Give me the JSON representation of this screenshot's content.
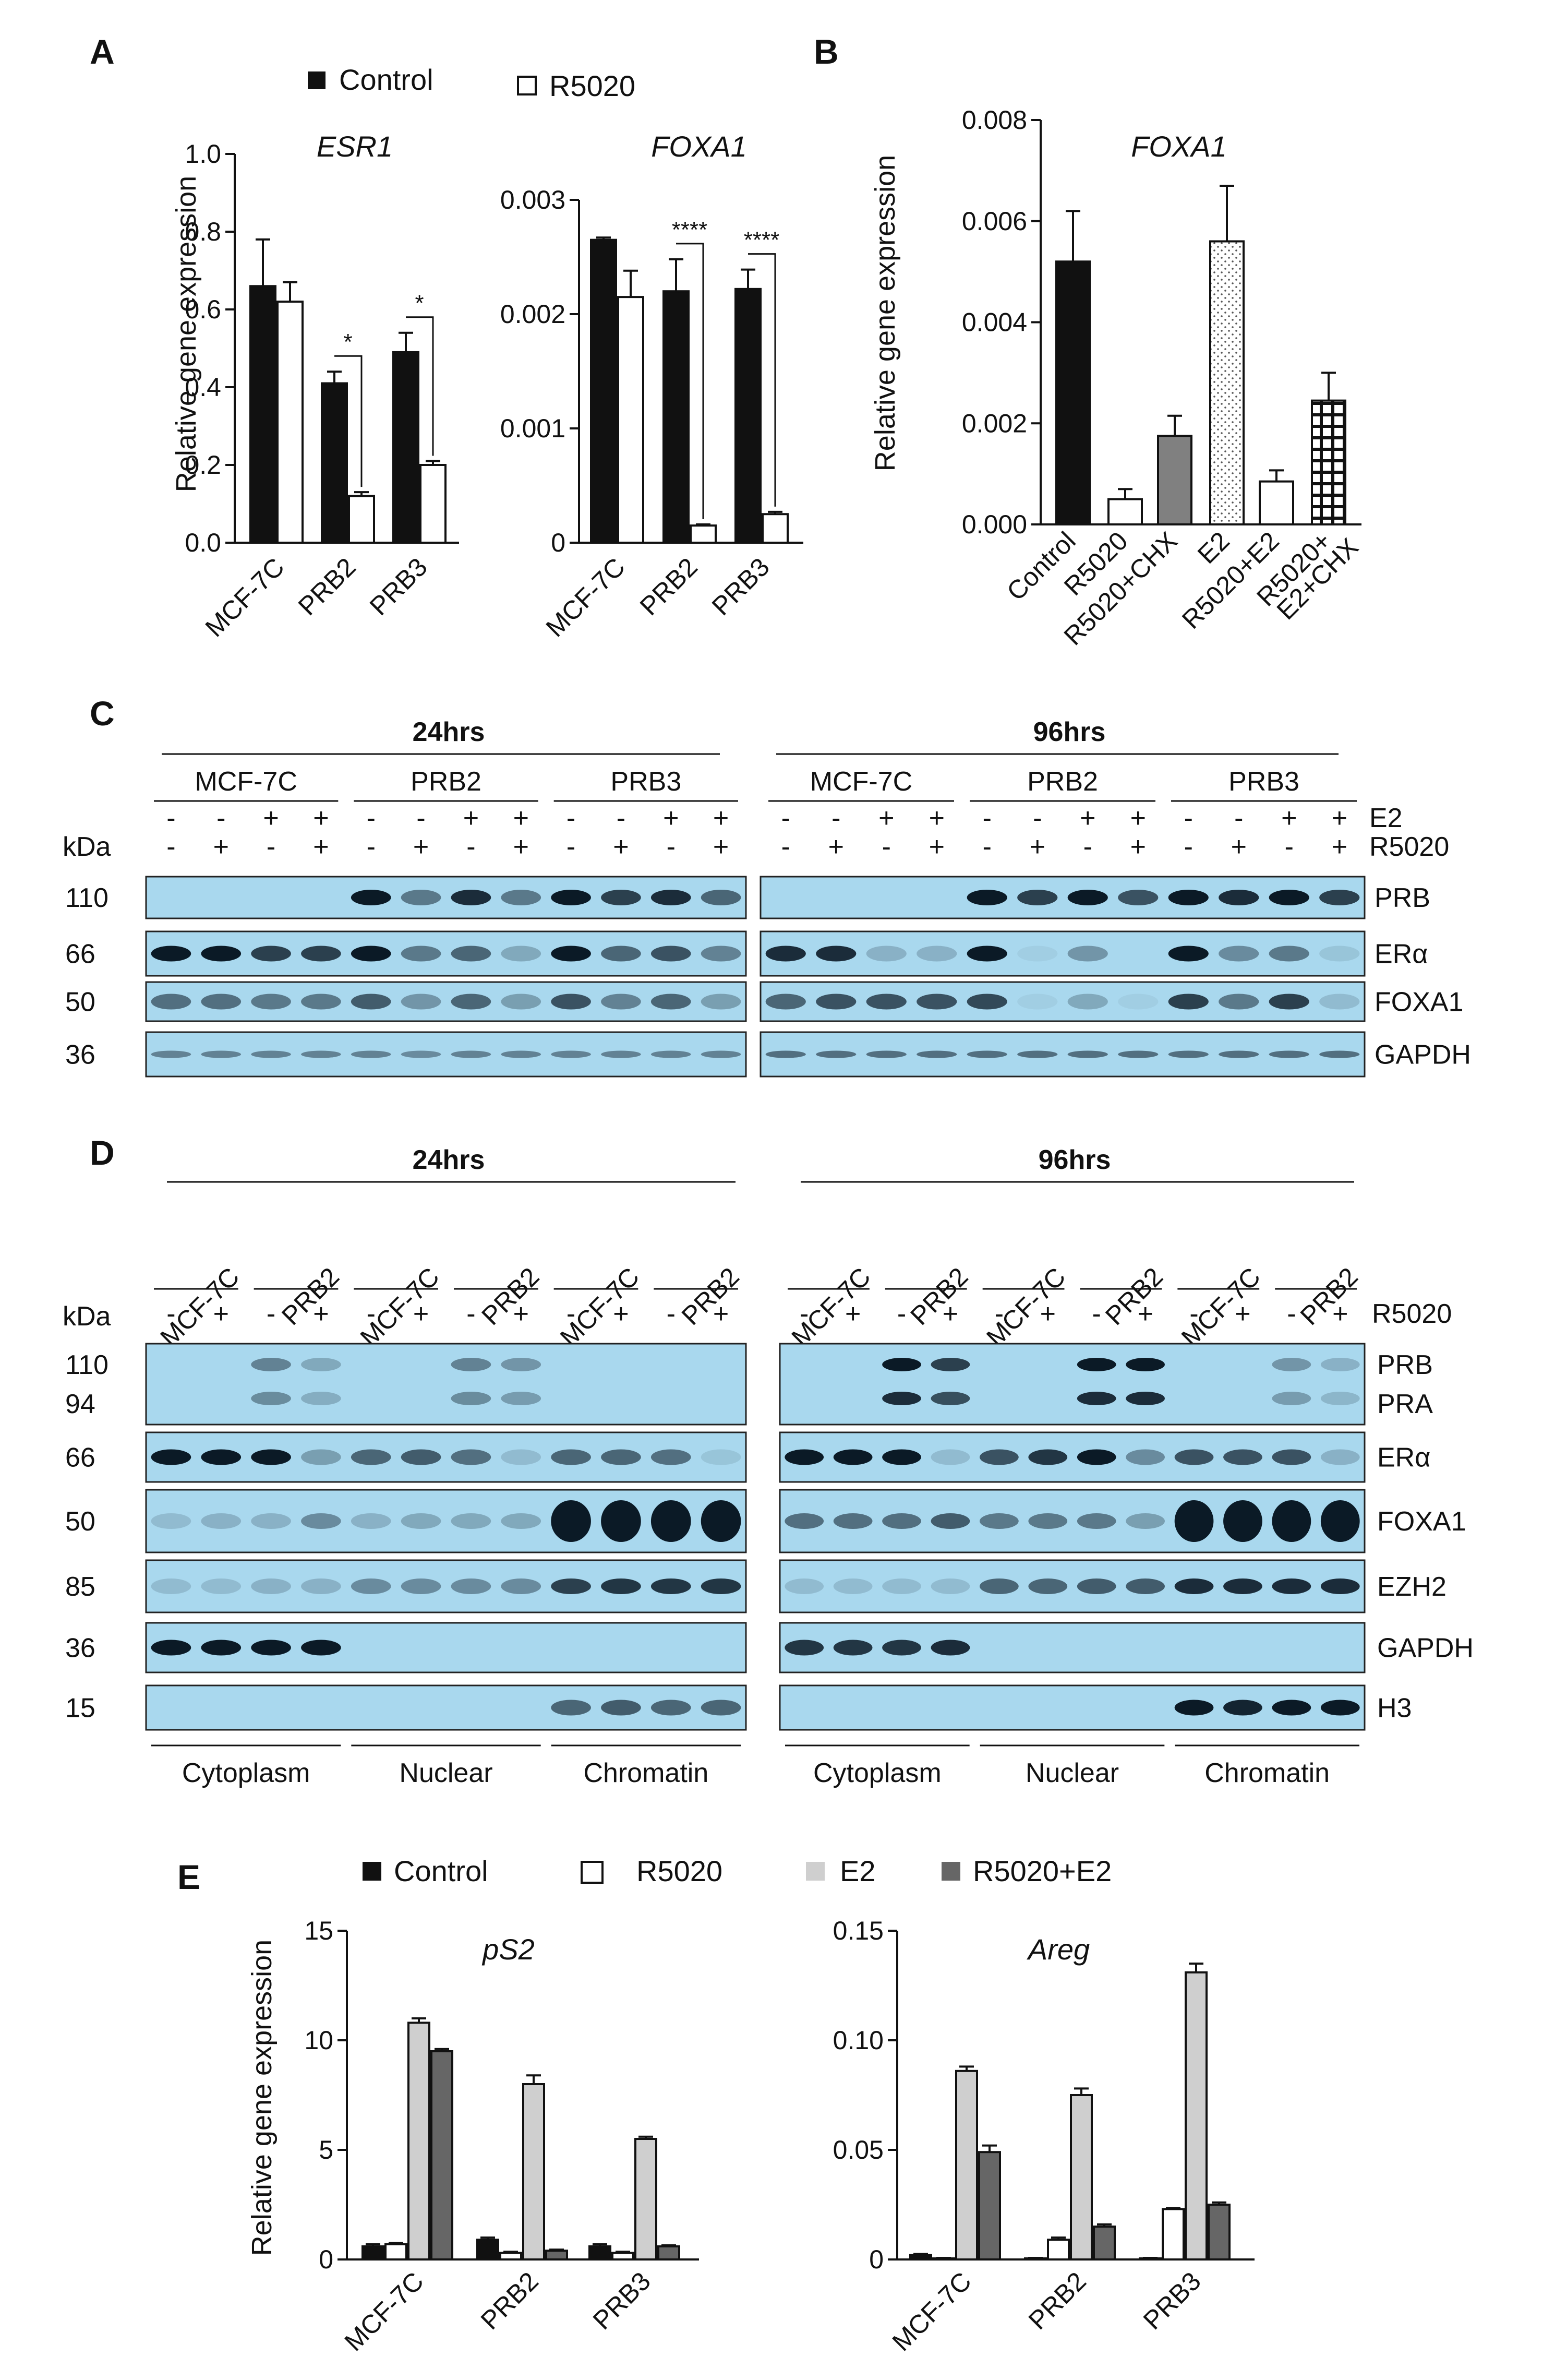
{
  "figure": {
    "panel_labels": [
      "A",
      "B",
      "C",
      "D",
      "E"
    ]
  },
  "colors": {
    "control": "#111111",
    "r5020": "#ffffff",
    "e2": "#cfcfcf",
    "r5020_e2": "#666666",
    "r5020_chx": "#808080",
    "blot_bg": "#a9d8ee"
  },
  "panel_a": {
    "legend": [
      "Control",
      "R5020"
    ],
    "ylabel": "Relative gene expression",
    "charts": [
      {
        "title": "ESR1",
        "categories": [
          "MCF-7C",
          "PRB2",
          "PRB3"
        ],
        "ticks": [
          "0.0",
          "0.2",
          "0.4",
          "0.6",
          "0.8",
          "1.0"
        ],
        "ymax": 1.0,
        "control": [
          0.66,
          0.41,
          0.49
        ],
        "control_err": [
          0.12,
          0.03,
          0.05
        ],
        "r5020": [
          0.62,
          0.12,
          0.2
        ],
        "r5020_err": [
          0.05,
          0.01,
          0.01
        ],
        "significance": [
          "",
          "*",
          "*"
        ]
      },
      {
        "title": "FOXA1",
        "categories": [
          "MCF-7C",
          "PRB2",
          "PRB3"
        ],
        "ticks": [
          "0",
          "0.001",
          "0.002",
          "0.003"
        ],
        "ymax": 0.003,
        "control": [
          0.00265,
          0.0022,
          0.00222
        ],
        "control_err": [
          2e-05,
          0.00028,
          0.00017
        ],
        "r5020": [
          0.00215,
          0.00015,
          0.00025
        ],
        "r5020_err": [
          0.00023,
          1e-05,
          2e-05
        ],
        "significance": [
          "",
          "****",
          "****"
        ]
      }
    ]
  },
  "panel_b": {
    "title": "FOXA1",
    "ylabel": "Relative gene expression",
    "ticks": [
      "0.000",
      "0.002",
      "0.004",
      "0.006",
      "0.008"
    ],
    "ymax": 0.008,
    "categories": [
      "Control",
      "R5020",
      "R5020+CHX",
      "E2",
      "R5020+E2",
      "R5020+\nE2+CHX"
    ],
    "category_lines": [
      [
        "Control"
      ],
      [
        "R5020"
      ],
      [
        "R5020+CHX"
      ],
      [
        "E2"
      ],
      [
        "R5020+E2"
      ],
      [
        "R5020+",
        "E2+CHX"
      ]
    ],
    "values": [
      0.0052,
      0.0005,
      0.00175,
      0.0056,
      0.00085,
      0.00245
    ],
    "errors": [
      0.001,
      0.0002,
      0.0004,
      0.0011,
      0.00022,
      0.00055
    ]
  },
  "panel_c": {
    "left_time": "24hrs",
    "right_time": "96hrs",
    "groups": [
      "MCF-7C",
      "PRB2",
      "PRB3"
    ],
    "e2_row": [
      "-",
      "-",
      "+",
      "+"
    ],
    "r5020_row": [
      "-",
      "+",
      "-",
      "+"
    ],
    "e2_label": "E2",
    "r5020_label": "R5020",
    "kda_label": "kDa",
    "rows": [
      {
        "kda": "110",
        "label": "PRB"
      },
      {
        "kda": "66",
        "label": "ERα"
      },
      {
        "kda": "50",
        "label": "FOXA1"
      },
      {
        "kda": "36",
        "label": "GAPDH"
      }
    ]
  },
  "panel_d": {
    "left_time": "24hrs",
    "right_time": "96hrs",
    "lane_groups": [
      "MCF-7C",
      "PRB2",
      "MCF-7C",
      "PRB2",
      "MCF-7C",
      "PRB2"
    ],
    "treat_row": [
      "-",
      "+"
    ],
    "r5020_label": "R5020",
    "kda_label": "kDa",
    "fractions": [
      "Cytoplasm",
      "Nuclear",
      "Chromatin"
    ],
    "rows": [
      {
        "kda": [
          "110",
          "94"
        ],
        "label": [
          "PRB",
          "PRA"
        ]
      },
      {
        "kda": [
          "66"
        ],
        "label": [
          "ERα"
        ]
      },
      {
        "kda": [
          "50"
        ],
        "label": [
          "FOXA1"
        ]
      },
      {
        "kda": [
          "85"
        ],
        "label": [
          "EZH2"
        ]
      },
      {
        "kda": [
          "36"
        ],
        "label": [
          "GAPDH"
        ]
      },
      {
        "kda": [
          "15"
        ],
        "label": [
          "H3"
        ]
      }
    ]
  },
  "panel_e": {
    "legend": [
      "Control",
      "R5020",
      "E2",
      "R5020+E2"
    ],
    "ylabel": "Relative gene expression",
    "charts": [
      {
        "title": "pS2",
        "categories": [
          "MCF-7C",
          "PRB2",
          "PRB3"
        ],
        "ticks": [
          "0",
          "5",
          "10",
          "15"
        ],
        "ymax": 15,
        "series": [
          {
            "name": "Control",
            "values": [
              0.6,
              0.9,
              0.6
            ],
            "err": [
              0.1,
              0.1,
              0.1
            ]
          },
          {
            "name": "R5020",
            "values": [
              0.7,
              0.3,
              0.3
            ],
            "err": [
              0.05,
              0.05,
              0.05
            ]
          },
          {
            "name": "E2",
            "values": [
              10.8,
              8.0,
              5.5
            ],
            "err": [
              0.2,
              0.4,
              0.1
            ]
          },
          {
            "name": "R5020+E2",
            "values": [
              9.5,
              0.4,
              0.6
            ],
            "err": [
              0.1,
              0.05,
              0.05
            ]
          }
        ]
      },
      {
        "title": "Areg",
        "categories": [
          "MCF-7C",
          "PRB2",
          "PRB3"
        ],
        "ticks": [
          "0",
          "0.05",
          "0.10",
          "0.15"
        ],
        "ymax": 0.15,
        "series": [
          {
            "name": "Control",
            "values": [
              0.002,
              0.0005,
              0.0005
            ],
            "err": [
              0.0005,
              0.0002,
              0.0002
            ]
          },
          {
            "name": "R5020",
            "values": [
              0.0005,
              0.009,
              0.023
            ],
            "err": [
              0.0002,
              0.001,
              0.0005
            ]
          },
          {
            "name": "E2",
            "values": [
              0.086,
              0.075,
              0.131
            ],
            "err": [
              0.002,
              0.003,
              0.004
            ]
          },
          {
            "name": "R5020+E2",
            "values": [
              0.049,
              0.015,
              0.025
            ],
            "err": [
              0.003,
              0.001,
              0.001
            ]
          }
        ]
      }
    ]
  }
}
